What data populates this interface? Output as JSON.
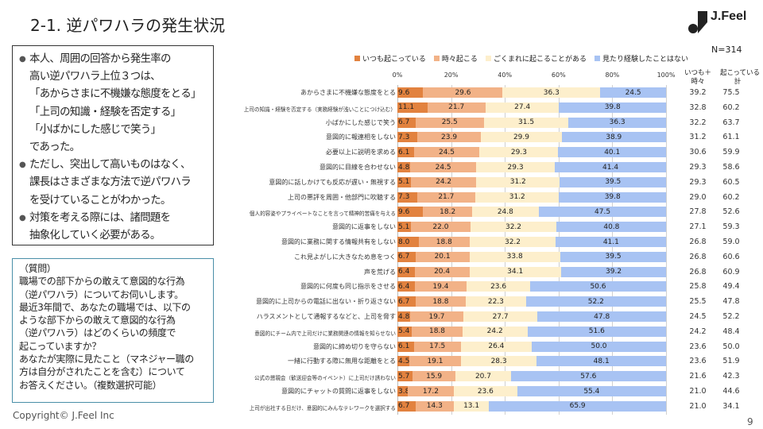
{
  "title": "2-1. 逆パワハラの発生状況",
  "logo_text": "J.Feel",
  "summary": [
    {
      "bullet": true,
      "lines": [
        "本人、周囲の回答から発生率の",
        "高い逆パワハラ上位３つは、",
        "「あからさまに不機嫌な態度をとる」",
        "「上司の知識・経験を否定する」",
        "「小ばかにした感じで笑う」",
        "であった。"
      ]
    },
    {
      "bullet": true,
      "lines": [
        "ただし、突出して高いものはなく、",
        "課長はさまざまな方法で逆パワハラ",
        "を受けていることがわかった。"
      ]
    },
    {
      "bullet": true,
      "lines": [
        "対策を考える際には、諸問題を",
        "抽象化していく必要がある。"
      ]
    }
  ],
  "question": [
    "（質問）",
    "職場での部下からの敢えて意図的な行為",
    "（逆パワハラ）についてお伺いします。",
    "最近3年間で、あなたの職場では、以下の",
    "ような部下からの敢えて意図的な行為",
    "（逆パワハラ）はどのくらいの頻度で",
    "起こっていますか？",
    "あなたが実際に見たこと（マネジャー職の",
    "方は自分がされたことを含む）について",
    "お答えください。（複数選択可能）"
  ],
  "copyright": "Copyright©  J.Feel Inc",
  "page_number": "9",
  "n_label": "N=314",
  "chart_data": {
    "type": "bar",
    "orientation": "horizontal",
    "stacked": true,
    "xlim": [
      0,
      100
    ],
    "x_ticks": [
      "0%",
      "20%",
      "40%",
      "60%",
      "80%",
      "100%"
    ],
    "grid": true,
    "legend_position": "top",
    "series": [
      {
        "name": "いつも起こっている",
        "color": "#e2823f",
        "values": [
          9.6,
          11.1,
          6.7,
          7.3,
          6.1,
          4.8,
          5.1,
          7.3,
          9.6,
          5.1,
          8.0,
          6.7,
          6.4,
          6.4,
          6.7,
          4.8,
          5.4,
          6.1,
          4.5,
          5.7,
          3.8,
          6.7
        ]
      },
      {
        "name": "時々起こる",
        "color": "#f2b287",
        "values": [
          29.6,
          21.7,
          25.5,
          23.9,
          24.5,
          24.5,
          24.2,
          21.7,
          18.2,
          22.0,
          18.8,
          20.1,
          20.4,
          19.4,
          18.8,
          19.7,
          18.8,
          17.5,
          19.1,
          15.9,
          17.2,
          14.3
        ]
      },
      {
        "name": "ごくまれに起こることがある",
        "color": "#fdefcc",
        "values": [
          36.3,
          27.4,
          31.5,
          29.9,
          29.3,
          29.3,
          31.2,
          31.2,
          24.8,
          32.2,
          32.2,
          33.8,
          34.1,
          23.6,
          22.3,
          27.7,
          24.2,
          26.4,
          28.3,
          20.7,
          23.6,
          13.1
        ]
      },
      {
        "name": "見たり経験したことはない",
        "color": "#a8c3f3",
        "values": [
          24.5,
          39.8,
          36.3,
          38.9,
          40.1,
          41.4,
          39.5,
          39.8,
          47.5,
          40.8,
          41.1,
          39.5,
          39.2,
          50.6,
          52.2,
          47.8,
          51.6,
          50.0,
          48.1,
          57.6,
          55.4,
          65.9
        ]
      }
    ],
    "categories": [
      "あからさまに不機嫌な態度をとる",
      "上司の知識・経験を否定する（実務経験が浅いことにつけ込む）",
      "小ばかにした感じで笑う",
      "意図的に報連相をしない",
      "必要以上に説明を求める",
      "意図的に目線を合わせない",
      "意図的に話しかけても反応が遅い・無視する",
      "上司の悪評を周囲・他部門に吹聴する",
      "個人的容姿やプライベートなことを言って精神的苦痛を与える",
      "意図的に返事をしない",
      "意図的に業務に関する情報共有をしない",
      "これ見よがしに大きなため息をつく",
      "声を荒げる",
      "意図的に何度も同じ指示をさせる",
      "意図的に上司からの電話に出ない・折り返さない",
      "ハラスメントとして通報するなどと、上司を脅す",
      "意図的にチーム内で上司だけに業務関連の情報を知らせない",
      "意図的に締め切りを守らない",
      "一緒に行動する際に無用な距離をとる",
      "公式の懇親会（歓送迎会等のイベント）に上司だけ誘わない",
      "意図的にチャットの質問に返事をしない",
      "上司が出社する日だけ、意図的にみんなテレワークを選択する"
    ],
    "extra_columns": [
      {
        "header": [
          "いつも＋",
          "時々"
        ],
        "values": [
          "39.2",
          "32.8",
          "32.2",
          "31.2",
          "30.6",
          "29.3",
          "29.3",
          "29.0",
          "27.8",
          "27.1",
          "26.8",
          "26.8",
          "26.8",
          "25.8",
          "25.5",
          "24.5",
          "24.2",
          "23.6",
          "23.6",
          "21.6",
          "21.0",
          "21.0"
        ]
      },
      {
        "header": [
          "起こっている",
          "計"
        ],
        "values": [
          "75.5",
          "60.2",
          "63.7",
          "61.1",
          "59.9",
          "58.6",
          "60.5",
          "60.2",
          "52.6",
          "59.3",
          "59.0",
          "60.6",
          "60.9",
          "49.4",
          "47.8",
          "52.2",
          "48.4",
          "50.0",
          "51.9",
          "42.3",
          "44.6",
          "34.1"
        ]
      }
    ]
  }
}
